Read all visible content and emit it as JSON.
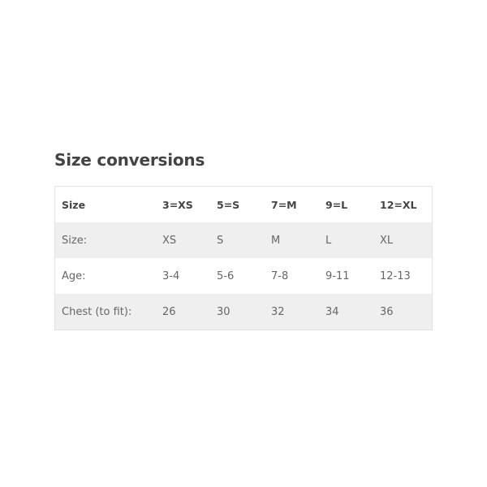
{
  "title": "Size conversions",
  "table": {
    "headers": [
      "Size",
      "3=XS",
      "5=S",
      "7=M",
      "9=L",
      "12=XL"
    ],
    "rows": [
      [
        "Size:",
        "XS",
        "S",
        "M",
        "L",
        "XL"
      ],
      [
        "Age:",
        "3-4",
        "5-6",
        "7-8",
        "9-11",
        "12-13"
      ],
      [
        "Chest (to fit):",
        "26",
        "30",
        "32",
        "34",
        "36"
      ]
    ]
  }
}
